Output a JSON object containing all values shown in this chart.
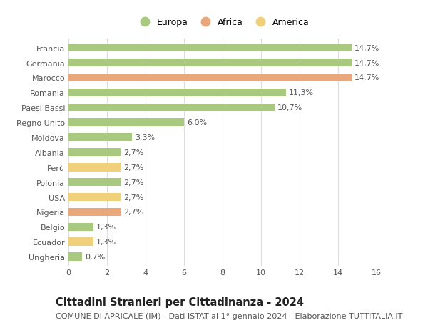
{
  "countries": [
    "Francia",
    "Germania",
    "Marocco",
    "Romania",
    "Paesi Bassi",
    "Regno Unito",
    "Moldova",
    "Albania",
    "Perù",
    "Polonia",
    "USA",
    "Nigeria",
    "Belgio",
    "Ecuador",
    "Ungheria"
  ],
  "values": [
    14.7,
    14.7,
    14.7,
    11.3,
    10.7,
    6.0,
    3.3,
    2.7,
    2.7,
    2.7,
    2.7,
    2.7,
    1.3,
    1.3,
    0.7
  ],
  "labels": [
    "14,7%",
    "14,7%",
    "14,7%",
    "11,3%",
    "10,7%",
    "6,0%",
    "3,3%",
    "2,7%",
    "2,7%",
    "2,7%",
    "2,7%",
    "2,7%",
    "1,3%",
    "1,3%",
    "0,7%"
  ],
  "continents": [
    "Europa",
    "Europa",
    "Africa",
    "Europa",
    "Europa",
    "Europa",
    "Europa",
    "Europa",
    "America",
    "Europa",
    "America",
    "Africa",
    "Europa",
    "America",
    "Europa"
  ],
  "colors": {
    "Europa": "#a8c97f",
    "Africa": "#e8a87c",
    "America": "#f0d07a"
  },
  "legend_order": [
    "Europa",
    "Africa",
    "America"
  ],
  "title": "Cittadini Stranieri per Cittadinanza - 2024",
  "subtitle": "COMUNE DI APRICALE (IM) - Dati ISTAT al 1° gennaio 2024 - Elaborazione TUTTITALIA.IT",
  "xlim": [
    0,
    16
  ],
  "xticks": [
    0,
    2,
    4,
    6,
    8,
    10,
    12,
    14,
    16
  ],
  "background_color": "#ffffff",
  "grid_color": "#dddddd",
  "bar_height": 0.55,
  "title_fontsize": 10.5,
  "subtitle_fontsize": 8,
  "tick_label_fontsize": 8,
  "label_fontsize": 8,
  "legend_fontsize": 9
}
